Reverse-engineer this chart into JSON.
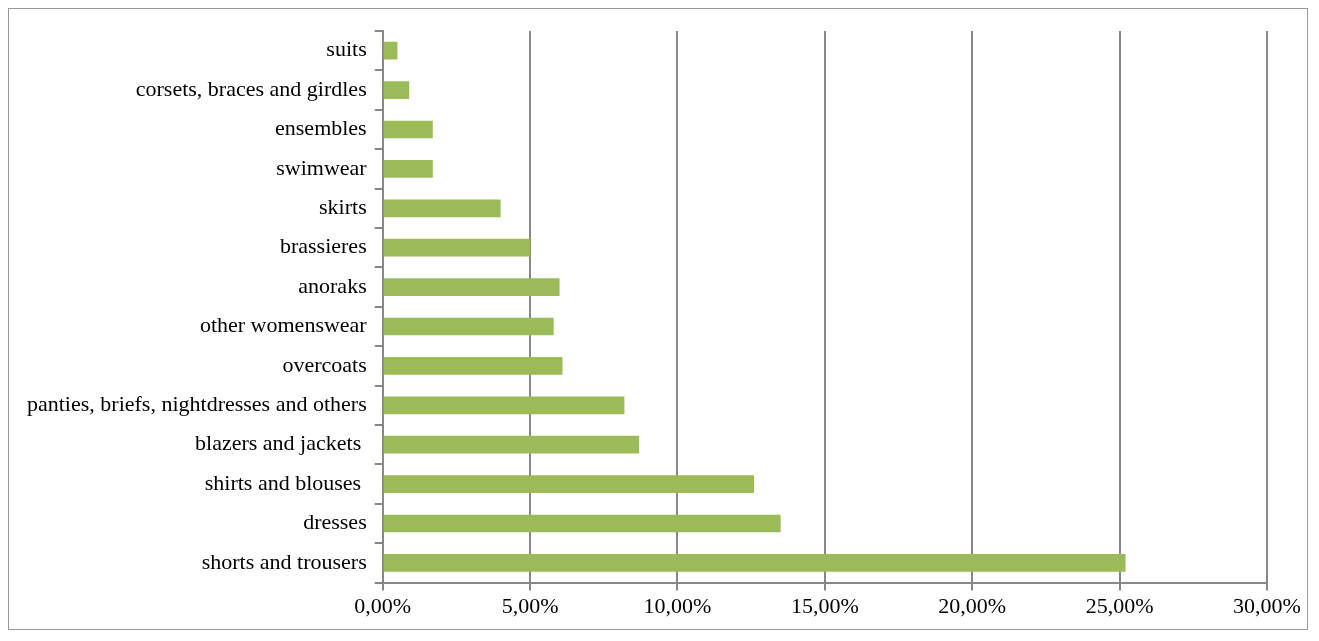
{
  "chart_data": {
    "type": "bar",
    "orientation": "horizontal",
    "categories": [
      "suits",
      "corsets, braces and girdles",
      "ensembles",
      "swimwear",
      "skirts",
      "brassieres",
      "anoraks",
      "other womenswear",
      "overcoats",
      "panties, briefs, nightdresses and others",
      "blazers and jackets ",
      "shirts and blouses ",
      "dresses",
      "shorts and trousers"
    ],
    "values": [
      0.5,
      0.9,
      1.7,
      1.7,
      4.0,
      5.0,
      6.0,
      5.8,
      6.1,
      8.2,
      8.7,
      12.6,
      13.5,
      25.2
    ],
    "color": "#9bbb59",
    "xlim": [
      0,
      30
    ],
    "xticks": [
      {
        "value": 0,
        "label": "0,00%"
      },
      {
        "value": 5,
        "label": "5,00%"
      },
      {
        "value": 10,
        "label": "10,00%"
      },
      {
        "value": 15,
        "label": "15,00%"
      },
      {
        "value": 20,
        "label": "20,00%"
      },
      {
        "value": 25,
        "label": "25,00%"
      },
      {
        "value": 30,
        "label": "30,00%"
      }
    ],
    "grid": "x",
    "legend": false
  }
}
